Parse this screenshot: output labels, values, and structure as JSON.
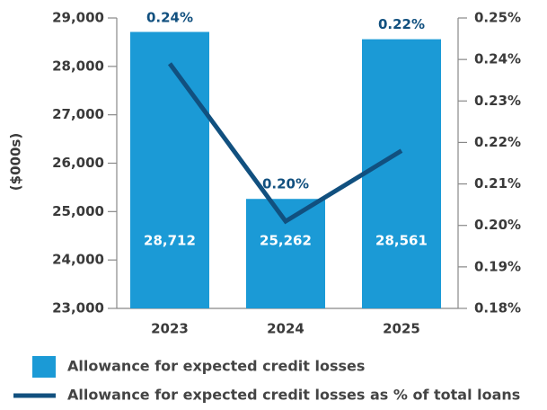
{
  "chart_data": {
    "type": "bar-line",
    "ylabel": "($000s)",
    "categories": [
      "2023",
      "2024",
      "2025"
    ],
    "series": [
      {
        "name": "Allowance for expected credit losses",
        "type": "bar",
        "color": "#1b9ad6",
        "values": [
          28712,
          25262,
          28561
        ],
        "value_labels": [
          "28,712",
          "25,262",
          "28,561"
        ]
      },
      {
        "name": "Allowance for expected credit losses as % of total loans",
        "type": "line",
        "axis": "y2",
        "color": "#11507f",
        "values": [
          0.239,
          0.201,
          0.218
        ],
        "value_labels": [
          "0.24%",
          "0.20%",
          "0.22%"
        ]
      }
    ],
    "ylim": [
      23000,
      29000
    ],
    "yticks": [
      {
        "value": 23000,
        "label": "23,000"
      },
      {
        "value": 24000,
        "label": "24,000"
      },
      {
        "value": 25000,
        "label": "25,000"
      },
      {
        "value": 26000,
        "label": "26,000"
      },
      {
        "value": 27000,
        "label": "27,000"
      },
      {
        "value": 28000,
        "label": "28,000"
      },
      {
        "value": 29000,
        "label": "29,000"
      }
    ],
    "y2lim": [
      0.18,
      0.25
    ],
    "y2ticks": [
      {
        "value": 0.18,
        "label": "0.18%"
      },
      {
        "value": 0.19,
        "label": "0.19%"
      },
      {
        "value": 0.2,
        "label": "0.20%"
      },
      {
        "value": 0.21,
        "label": "0.21%"
      },
      {
        "value": 0.22,
        "label": "0.22%"
      },
      {
        "value": 0.23,
        "label": "0.23%"
      },
      {
        "value": 0.24,
        "label": "0.24%"
      },
      {
        "value": 0.25,
        "label": "0.25%"
      }
    ],
    "legend": "bottom"
  }
}
